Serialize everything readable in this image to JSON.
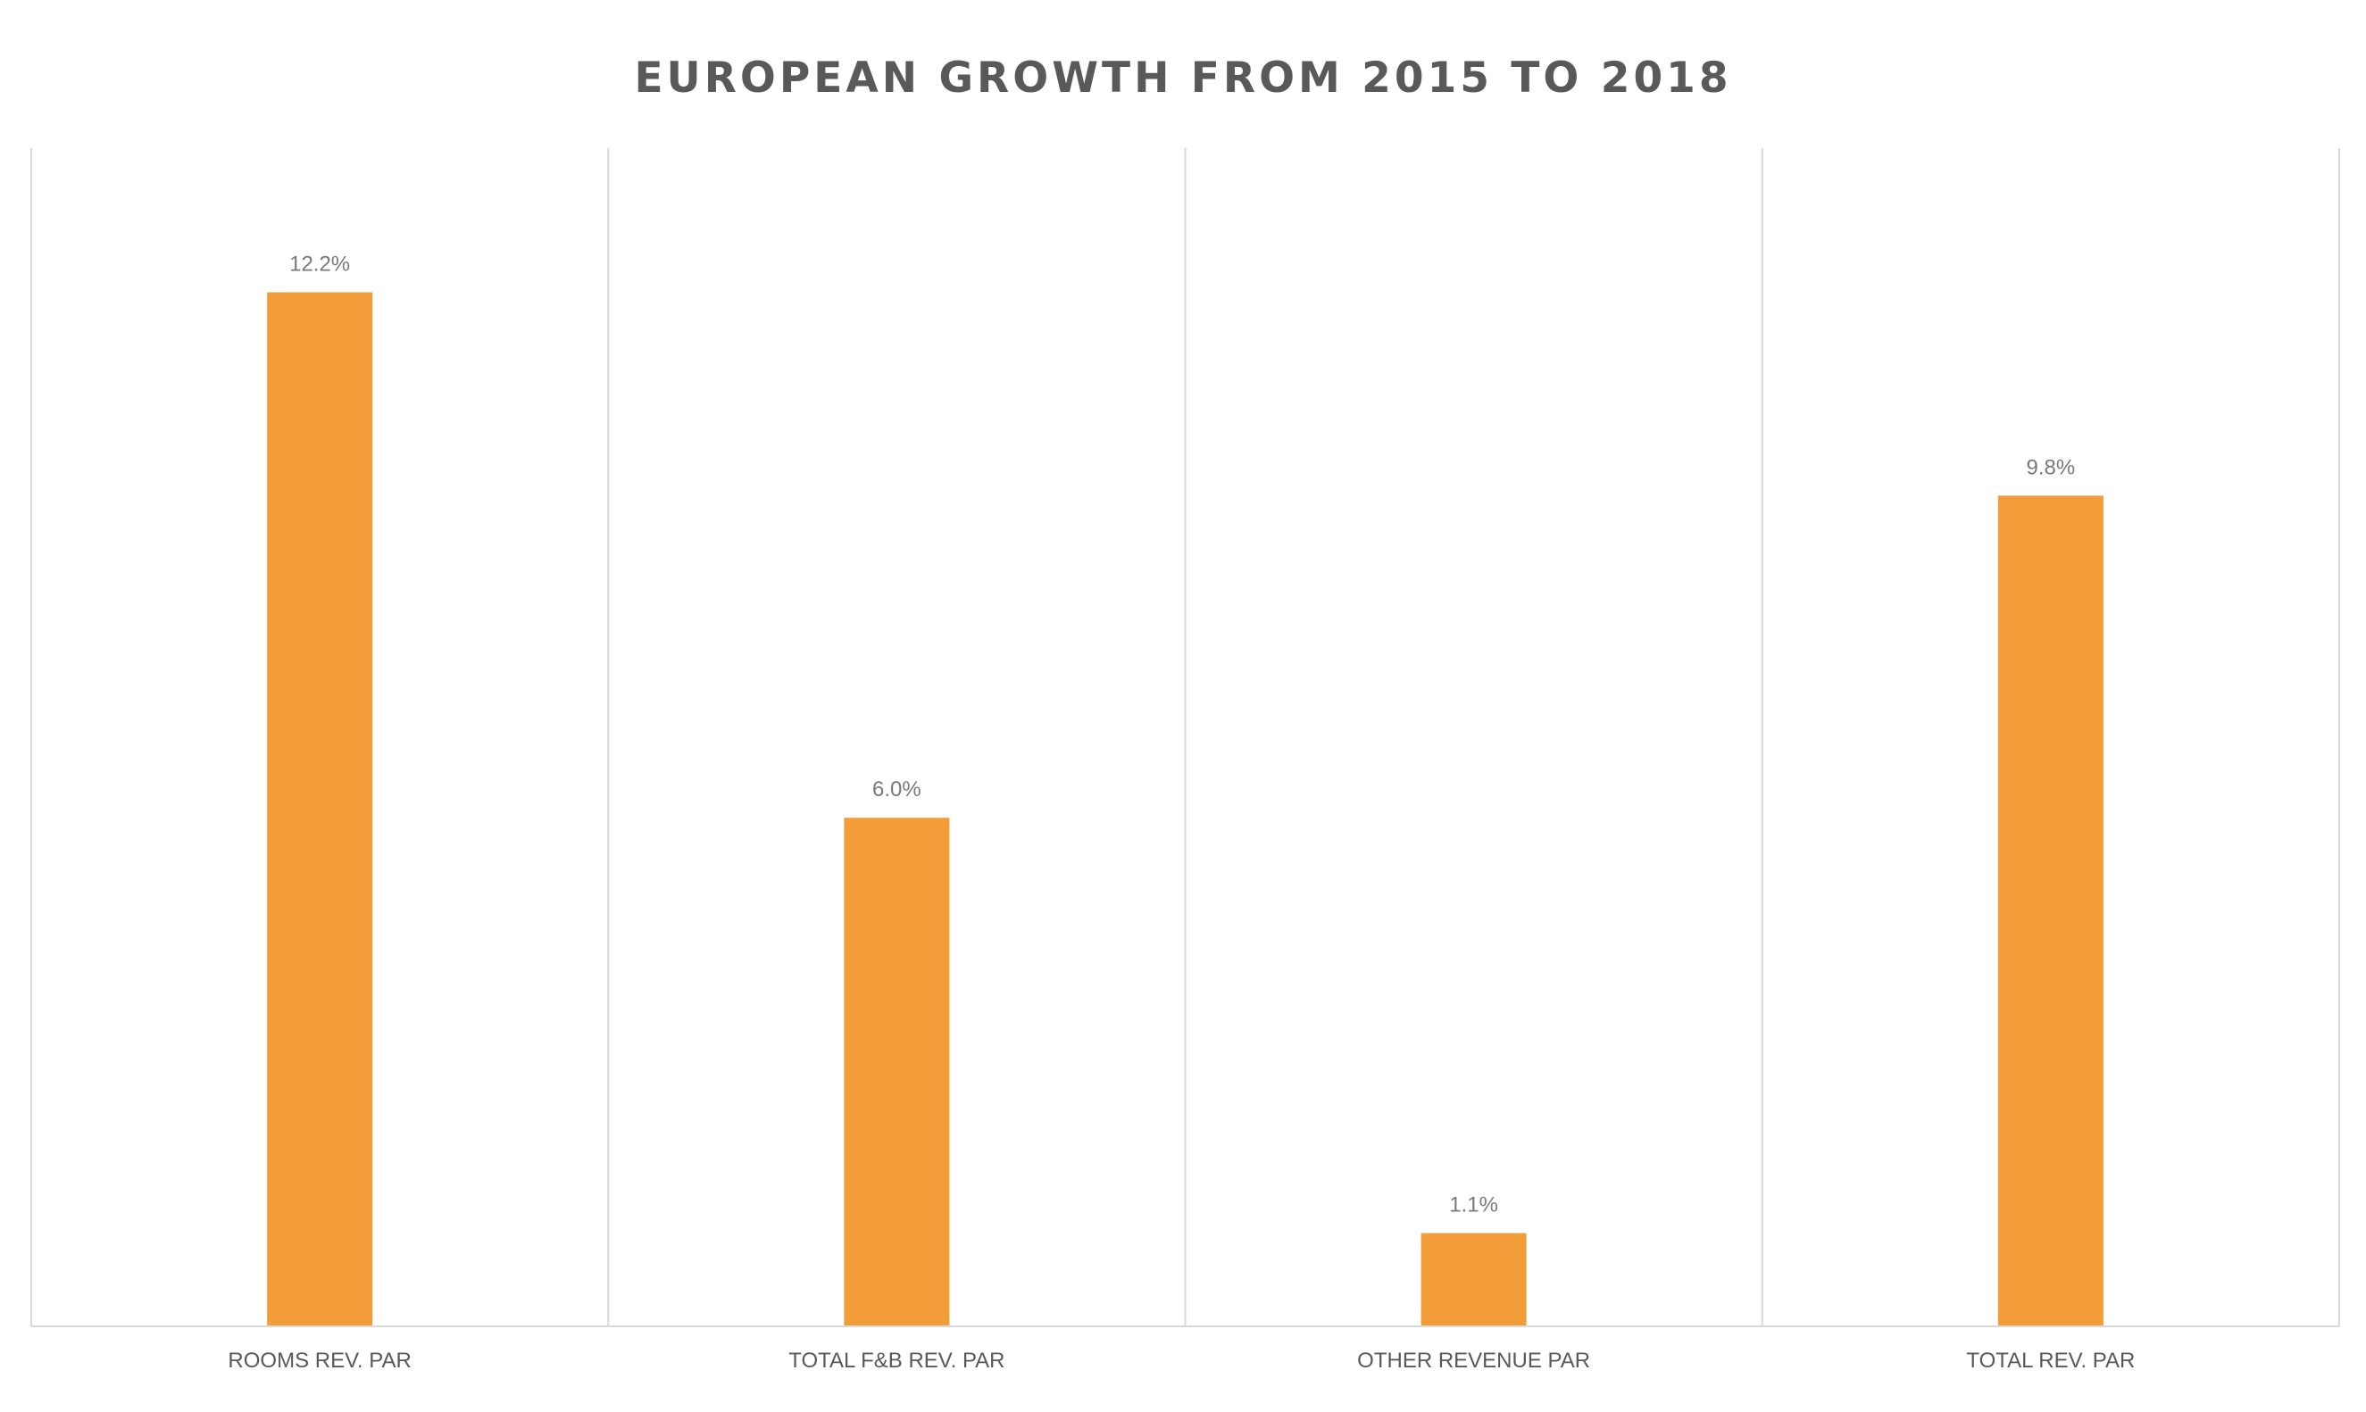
{
  "chart_data": {
    "type": "bar",
    "title": "EUROPEAN GROWTH FROM 2015 TO 2018",
    "categories": [
      "ROOMS REV. PAR",
      "TOTAL F&B REV. PAR",
      "OTHER REVENUE PAR",
      "TOTAL REV. PAR"
    ],
    "values": [
      12.2,
      6.0,
      1.1,
      9.8
    ],
    "value_labels": [
      "12.2%",
      "6.0%",
      "1.1%",
      "9.8%"
    ],
    "xlabel": "",
    "ylabel": "",
    "ylim": [
      0,
      13.9
    ],
    "grid": "vertical separators",
    "legend": "none",
    "bar_color": "#f29d3a"
  }
}
